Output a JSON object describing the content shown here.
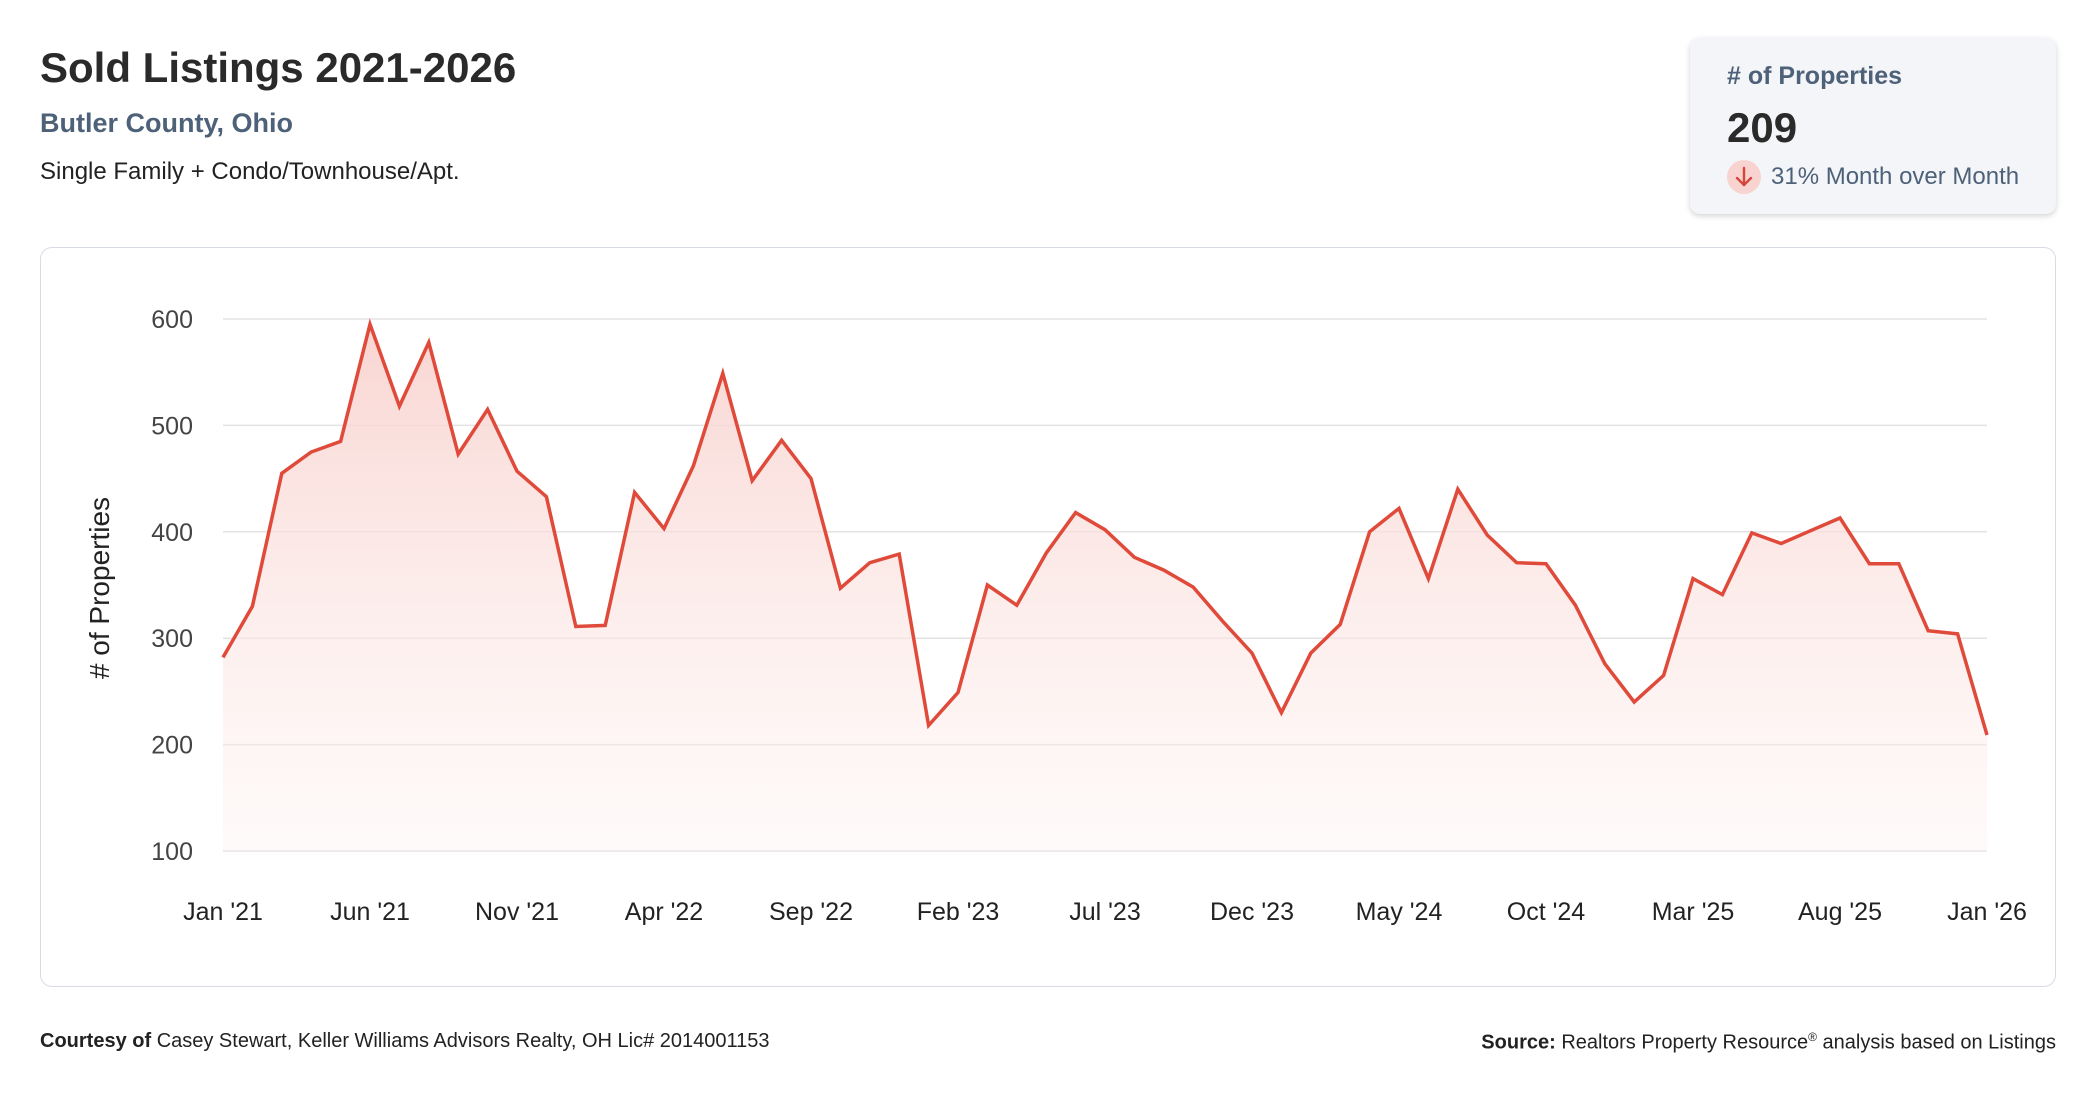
{
  "header": {
    "title": "Sold Listings 2021-2026",
    "subtitle": "Butler County, Ohio",
    "description": "Single Family + Condo/Townhouse/Apt."
  },
  "kpi_card": {
    "label": "# of Properties",
    "value": "209",
    "change_text": "31% Month over Month",
    "icon": "arrow-down-icon"
  },
  "colors": {
    "line": "#e04a3a",
    "fill": "#f8d3cf",
    "grid": "#e3e3e3",
    "label": "#4d6179"
  },
  "footer": {
    "courtesy_label": "Courtesy of",
    "courtesy_text": "Casey Stewart, Keller Williams Advisors Realty, OH Lic# 2014001153",
    "source_label": "Source:",
    "source_text_1": "Realtors Property Resource",
    "source_sup": "®",
    "source_text_2": "analysis based on Listings"
  },
  "chart_data": {
    "type": "area",
    "title": "",
    "xlabel": "",
    "ylabel": "# of Properties",
    "ylim": [
      100,
      600
    ],
    "yticks": [
      100,
      200,
      300,
      400,
      500,
      600
    ],
    "grid": true,
    "x_tick_labels": [
      "Jan '21",
      "Jun '21",
      "Nov '21",
      "Apr '22",
      "Sep '22",
      "Feb '23",
      "Jul '23",
      "Dec '23",
      "May '24",
      "Oct '24",
      "Mar '25",
      "Aug '25",
      "Jan '26"
    ],
    "x": [
      "Jan '21",
      "Feb '21",
      "Mar '21",
      "Apr '21",
      "May '21",
      "Jun '21",
      "Jul '21",
      "Aug '21",
      "Sep '21",
      "Oct '21",
      "Nov '21",
      "Dec '21",
      "Jan '22",
      "Feb '22",
      "Mar '22",
      "Apr '22",
      "May '22",
      "Jun '22",
      "Jul '22",
      "Aug '22",
      "Sep '22",
      "Oct '22",
      "Nov '22",
      "Dec '22",
      "Jan '23",
      "Feb '23",
      "Mar '23",
      "Apr '23",
      "May '23",
      "Jun '23",
      "Jul '23",
      "Aug '23",
      "Sep '23",
      "Oct '23",
      "Nov '23",
      "Dec '23",
      "Jan '24",
      "Feb '24",
      "Mar '24",
      "Apr '24",
      "May '24",
      "Jun '24",
      "Jul '24",
      "Aug '24",
      "Sep '24",
      "Oct '24",
      "Nov '24",
      "Dec '24",
      "Jan '25",
      "Feb '25",
      "Mar '25",
      "Apr '25",
      "May '25",
      "Jun '25",
      "Jul '25",
      "Aug '25",
      "Sep '25",
      "Oct '25",
      "Nov '25",
      "Dec '25",
      "Jan '26"
    ],
    "series": [
      {
        "values": [
          282,
          330,
          455,
          475,
          485,
          595,
          518,
          578,
          473,
          515,
          457,
          433,
          311,
          312,
          437,
          403,
          462,
          549,
          448,
          486,
          450,
          347,
          371,
          379,
          218,
          249,
          350,
          331,
          380,
          418,
          402,
          376,
          364,
          348,
          316,
          286,
          230,
          286,
          313,
          400,
          422,
          356,
          440,
          397,
          371,
          370,
          331,
          276,
          240,
          265,
          356,
          341,
          399,
          389,
          401,
          413,
          370,
          370,
          307,
          304,
          209
        ]
      }
    ]
  }
}
